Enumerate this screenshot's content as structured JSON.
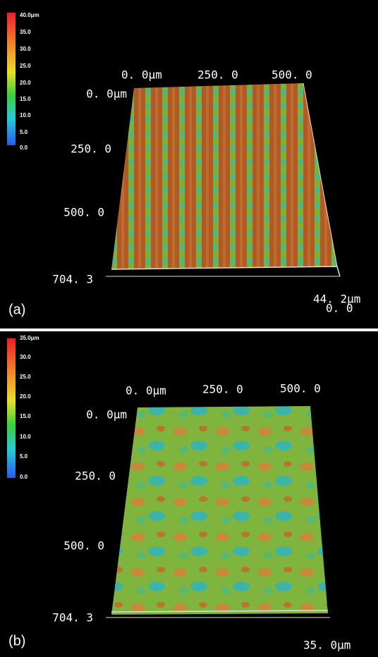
{
  "panels": [
    {
      "label": "(a)",
      "colorbar": [
        "40.0μm",
        "35.0",
        "30.0",
        "25.0",
        "20.0",
        "15.0",
        "10.0",
        "5.0",
        "0.0"
      ],
      "top_axis": [
        "0. 0μm",
        "250. 0",
        "500. 0"
      ],
      "left_axis": [
        "0. 0μm",
        "250. 0",
        "500. 0",
        "704. 3"
      ],
      "z_axis": [
        "44. 2μm",
        "0. 0"
      ]
    },
    {
      "label": "(b)",
      "colorbar": [
        "35.0μm",
        "30.0",
        "25.0",
        "20.0",
        "15.0",
        "10.0",
        "5.0",
        "0.0"
      ],
      "top_axis": [
        "0. 0μm",
        "250. 0",
        "500. 0"
      ],
      "left_axis": [
        "0. 0μm",
        "250. 0",
        "500. 0",
        "704. 3"
      ],
      "z_axis": [
        "35. 0μm"
      ]
    }
  ]
}
